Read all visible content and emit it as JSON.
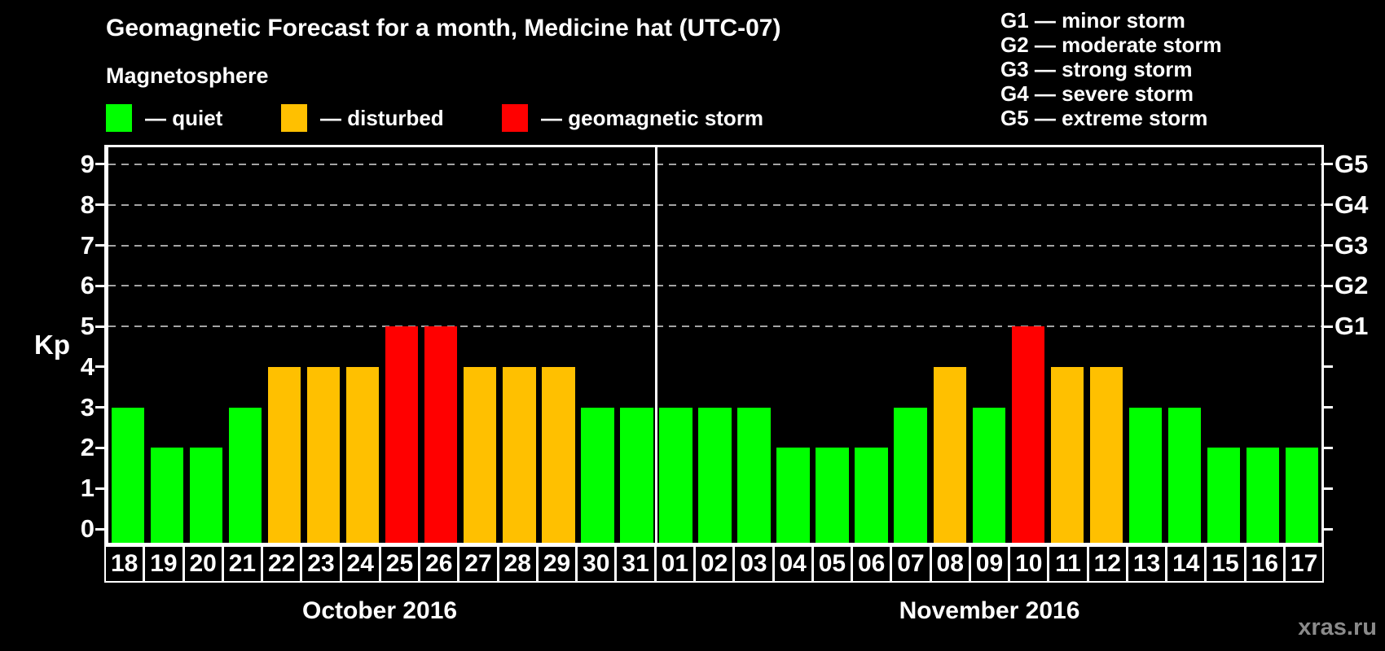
{
  "title": "Geomagnetic Forecast for a month, Medicine hat (UTC-07)",
  "subtitle": "Magnetosphere",
  "watermark": "xras.ru",
  "axis": {
    "ylabel": "Kp",
    "yticks": [
      0,
      1,
      2,
      3,
      4,
      5,
      6,
      7,
      8,
      9
    ],
    "g_labels": [
      {
        "value": 5,
        "label": "G1"
      },
      {
        "value": 6,
        "label": "G2"
      },
      {
        "value": 7,
        "label": "G3"
      },
      {
        "value": 8,
        "label": "G4"
      },
      {
        "value": 9,
        "label": "G5"
      }
    ]
  },
  "legend": {
    "items": [
      {
        "status": "quiet",
        "label": "— quiet"
      },
      {
        "status": "disturbed",
        "label": "— disturbed"
      },
      {
        "status": "storm",
        "label": "— geomagnetic storm"
      }
    ]
  },
  "g_legend": [
    "G1 — minor storm",
    "G2 — moderate storm",
    "G3 — strong storm",
    "G4 — severe storm",
    "G5 — extreme storm"
  ],
  "colors": {
    "quiet": "#00ff00",
    "disturbed": "#ffc000",
    "storm": "#ff0000",
    "gridline": "#a4a4a4",
    "frame": "#ffffff",
    "background": "#000000",
    "watermark": "#8a8a8a"
  },
  "months": [
    {
      "name": "October 2016",
      "days": 14
    },
    {
      "name": "November 2016",
      "days": 17
    }
  ],
  "chart_data": {
    "type": "bar",
    "title": "Geomagnetic Forecast for a month, Medicine hat (UTC-07)",
    "ylabel": "Kp",
    "ylim": [
      0,
      9
    ],
    "grid": "dashed horizontal at Kp 5-9 (G1-G5)",
    "gridlines": [
      5,
      6,
      7,
      8,
      9
    ],
    "categories": [
      "18",
      "19",
      "20",
      "21",
      "22",
      "23",
      "24",
      "25",
      "26",
      "27",
      "28",
      "29",
      "30",
      "31",
      "01",
      "02",
      "03",
      "04",
      "05",
      "06",
      "07",
      "08",
      "09",
      "10",
      "11",
      "12",
      "13",
      "14",
      "15",
      "16",
      "17"
    ],
    "values": [
      3,
      2,
      2,
      3,
      4,
      4,
      4,
      5,
      5,
      4,
      4,
      4,
      3,
      3,
      3,
      3,
      3,
      2,
      2,
      2,
      3,
      4,
      3,
      5,
      4,
      4,
      3,
      3,
      2,
      2,
      2
    ],
    "statuses": [
      "quiet",
      "quiet",
      "quiet",
      "quiet",
      "disturbed",
      "disturbed",
      "disturbed",
      "storm",
      "storm",
      "disturbed",
      "disturbed",
      "disturbed",
      "quiet",
      "quiet",
      "quiet",
      "quiet",
      "quiet",
      "quiet",
      "quiet",
      "quiet",
      "quiet",
      "disturbed",
      "quiet",
      "storm",
      "disturbed",
      "disturbed",
      "quiet",
      "quiet",
      "quiet",
      "quiet",
      "quiet"
    ]
  }
}
